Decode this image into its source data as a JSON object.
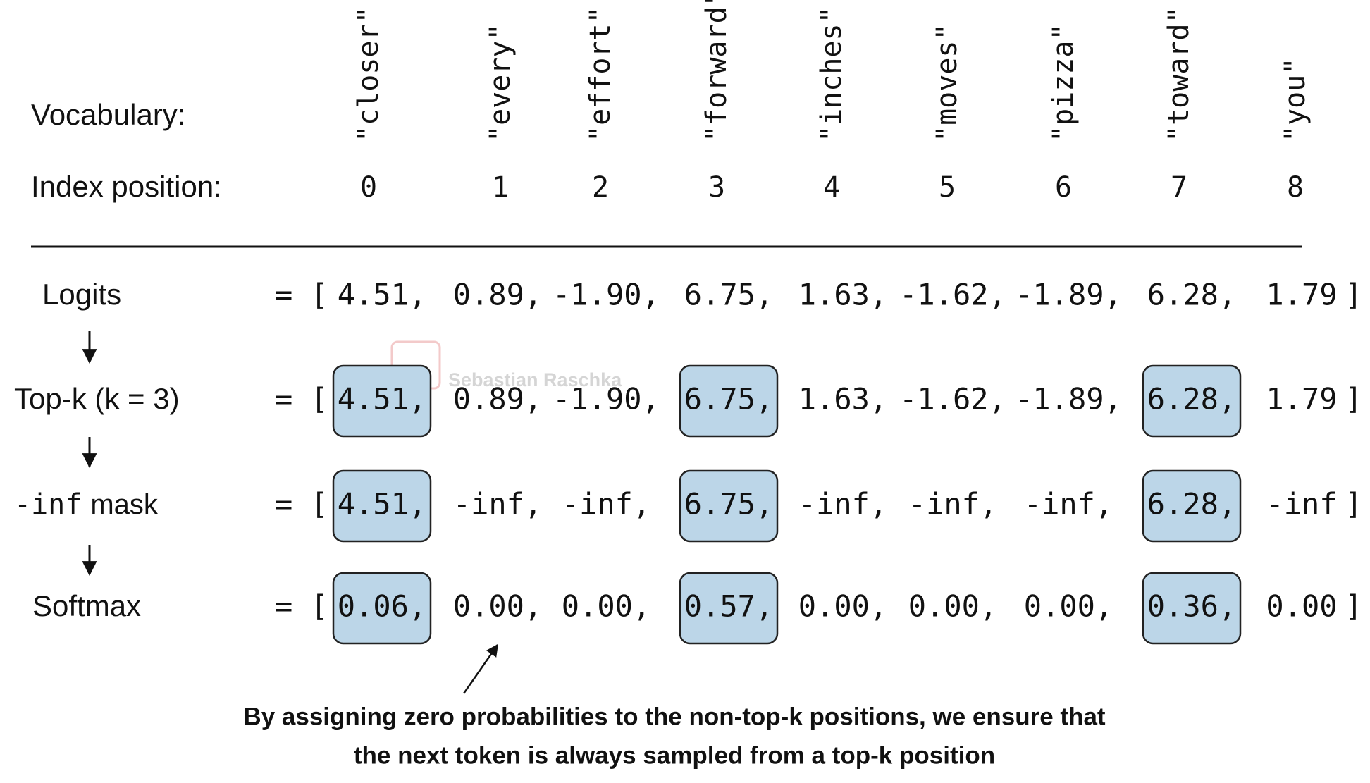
{
  "vocabulary": {
    "label": "Vocabulary:",
    "tokens": [
      "\"closer\"",
      "\"every\"",
      "\"effort\"",
      "\"forward\"",
      "\"inches\"",
      "\"moves\"",
      "\"pizza\"",
      "\"toward\"",
      "\"you\""
    ]
  },
  "index": {
    "label": "Index position:",
    "values": [
      "0",
      "1",
      "2",
      "3",
      "4",
      "5",
      "6",
      "7",
      "8"
    ]
  },
  "rows": [
    {
      "label": "Logits",
      "open": "= [",
      "close": "]",
      "highlight": false,
      "cells": [
        "4.51,",
        "0.89,",
        "-1.90,",
        "6.75,",
        "1.63,",
        "-1.62,",
        "-1.89,",
        "6.28,",
        "1.79"
      ]
    },
    {
      "label": "Top-k (k = 3)",
      "open": "= [",
      "close": "]",
      "highlight": true,
      "cells": [
        "4.51,",
        "0.89,",
        "-1.90,",
        "6.75,",
        "1.63,",
        "-1.62,",
        "-1.89,",
        "6.28,",
        "1.79"
      ]
    },
    {
      "label_code": "-inf",
      "label": "mask",
      "open": "= [",
      "close": "]",
      "highlight": true,
      "cells": [
        "4.51,",
        "-inf,",
        "-inf,",
        "6.75,",
        "-inf,",
        "-inf,",
        "-inf,",
        "6.28,",
        "-inf"
      ]
    },
    {
      "label": "Softmax",
      "open": "= [",
      "close": "]",
      "highlight": true,
      "cells": [
        "0.06,",
        "0.00,",
        "0.00,",
        "0.57,",
        "0.00,",
        "0.00,",
        "0.00,",
        "0.36,",
        "0.00"
      ]
    }
  ],
  "top_k_positions": [
    0,
    3,
    7
  ],
  "watermark": "Sebastian Raschka",
  "annotation": [
    "By assigning zero probabilities to the non-top-k positions, we ensure that",
    "the next token is always sampled from a top-k position"
  ]
}
